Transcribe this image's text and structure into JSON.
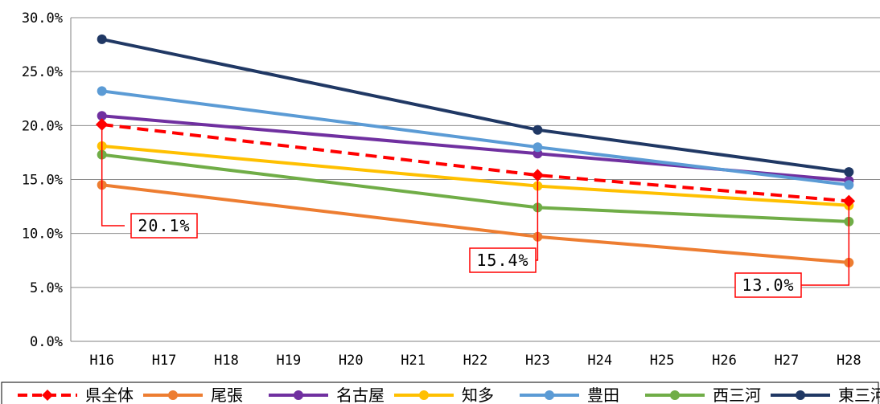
{
  "chart_data": {
    "type": "line",
    "x": [
      "H16",
      "H17",
      "H18",
      "H19",
      "H20",
      "H21",
      "H22",
      "H23",
      "H24",
      "H25",
      "H26",
      "H27",
      "H28"
    ],
    "y_ticks": [
      "0.0%",
      "5.0%",
      "10.0%",
      "15.0%",
      "20.0%",
      "25.0%",
      "30.0%"
    ],
    "ylim": [
      0,
      30
    ],
    "grid": true,
    "legend_position": "bottom",
    "series": [
      {
        "name": "県全体",
        "color": "#ff0000",
        "dashed": true,
        "marker": "diamond",
        "points": [
          [
            "H16",
            20.1
          ],
          [
            "H23",
            15.4
          ],
          [
            "H28",
            13.0
          ]
        ]
      },
      {
        "name": "尾張",
        "color": "#ed7d31",
        "points": [
          [
            "H16",
            14.5
          ],
          [
            "H23",
            9.7
          ],
          [
            "H28",
            7.3
          ]
        ]
      },
      {
        "name": "名古屋",
        "color": "#7030a0",
        "points": [
          [
            "H16",
            20.9
          ],
          [
            "H23",
            17.4
          ],
          [
            "H28",
            14.9
          ]
        ]
      },
      {
        "name": "知多",
        "color": "#ffc000",
        "points": [
          [
            "H16",
            18.1
          ],
          [
            "H23",
            14.4
          ],
          [
            "H28",
            12.6
          ]
        ]
      },
      {
        "name": "豊田",
        "color": "#5b9bd5",
        "points": [
          [
            "H16",
            23.2
          ],
          [
            "H23",
            18.0
          ],
          [
            "H28",
            14.5
          ]
        ]
      },
      {
        "name": "西三河",
        "color": "#70ad47",
        "points": [
          [
            "H16",
            17.3
          ],
          [
            "H23",
            12.4
          ],
          [
            "H28",
            11.1
          ]
        ]
      },
      {
        "name": "東三河",
        "color": "#203864",
        "points": [
          [
            "H16",
            28.0
          ],
          [
            "H23",
            19.6
          ],
          [
            "H28",
            15.7
          ]
        ]
      }
    ],
    "annotations": [
      {
        "text": "20.1%",
        "x": "H16",
        "y": 20.1
      },
      {
        "text": "15.4%",
        "x": "H23",
        "y": 15.4
      },
      {
        "text": "13.0%",
        "x": "H28",
        "y": 13.0
      }
    ]
  }
}
